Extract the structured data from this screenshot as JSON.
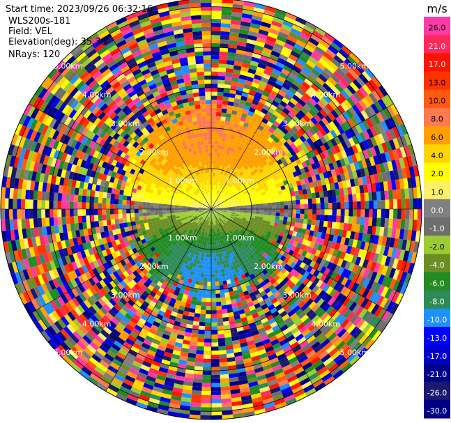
{
  "header": {
    "start_time": "Start time: 2023/09/26 06:32:16",
    "instrument": "WLS200s-181",
    "field": "Field: VEL",
    "elevation": "Elevation(deg): 35.30",
    "nrays": "NRays: 120"
  },
  "chart_data": {
    "type": "heatmap",
    "projection": "polar-ppi",
    "field": "VEL",
    "units": "m/s",
    "nrays": 120,
    "range_ring_labels": [
      "1.00km",
      "2.00km",
      "3.00km",
      "4.00km",
      "5.00km"
    ],
    "range_rings_km": [
      1,
      2,
      3,
      4,
      5
    ],
    "max_range_km": 5.2,
    "colorbar": {
      "label": "m/s",
      "ticks": [
        "26.0",
        "21.0",
        "17.0",
        "13.0",
        "10.0",
        "8.0",
        "6.0",
        "4.0",
        "2.0",
        "1.0",
        "0.0",
        "-1.0",
        "-2.0",
        "-4.0",
        "-6.0",
        "-8.0",
        "-10.0",
        "-13.0",
        "-17.0",
        "-21.0",
        "-26.0",
        "-30.0"
      ],
      "colors": [
        "#ff3aa8",
        "#ff2a5a",
        "#ff1400",
        "#ff3300",
        "#ff5a10",
        "#ff7a50",
        "#ffa000",
        "#ffd400",
        "#ffff00",
        "#fff066",
        "#808080",
        "#6e6e6e",
        "#9acd32",
        "#6b8e23",
        "#228b22",
        "#2e8b57",
        "#1e90ff",
        "#0000ff",
        "#0000cd",
        "#00008b",
        "#191970",
        "#000080"
      ]
    },
    "velocity_pattern": {
      "north_half_near_range": "positive (+2 to +8 m/s, yellow to salmon)",
      "south_half_near_range": "negative (-2 to -8 m/s, green to teal)",
      "far_range": "noisy / unfiltered"
    }
  }
}
